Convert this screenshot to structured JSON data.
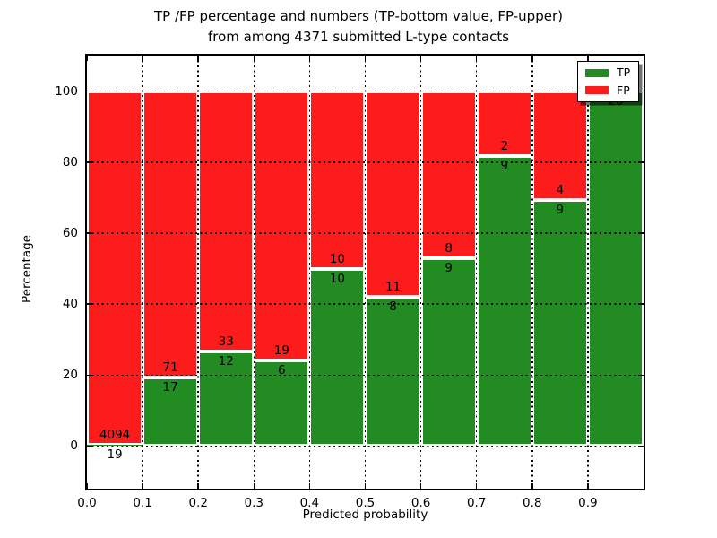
{
  "chart_data": {
    "type": "bar",
    "subtype": "stacked-percentage-histogram",
    "title": "TP /FP percentage and numbers (TP-bottom value, FP-upper)\nfrom among 4371 submitted L-type contacts",
    "xlabel": "Predicted probability",
    "ylabel": "Percentage",
    "total_contacts": 4371,
    "xlim": [
      0.0,
      1.0
    ],
    "ylim": [
      -12,
      110
    ],
    "x_ticks": [
      "0.0",
      "0.1",
      "0.2",
      "0.3",
      "0.4",
      "0.5",
      "0.6",
      "0.7",
      "0.8",
      "0.9"
    ],
    "y_ticks": [
      0,
      20,
      40,
      60,
      80,
      100
    ],
    "grid": true,
    "grid_style": "dotted",
    "legend_position": "upper-right",
    "bar_width": 0.1,
    "bar_edge_color": "#ffffff",
    "legend": [
      {
        "label": "TP",
        "color": "#228b22"
      },
      {
        "label": "FP",
        "color": "#fc1c1c"
      }
    ],
    "bins": [
      {
        "range": [
          0.0,
          0.1
        ],
        "tp": 19,
        "fp": 4094
      },
      {
        "range": [
          0.1,
          0.2
        ],
        "tp": 17,
        "fp": 71
      },
      {
        "range": [
          0.2,
          0.3
        ],
        "tp": 12,
        "fp": 33
      },
      {
        "range": [
          0.3,
          0.4
        ],
        "tp": 6,
        "fp": 19
      },
      {
        "range": [
          0.4,
          0.5
        ],
        "tp": 10,
        "fp": 10
      },
      {
        "range": [
          0.5,
          0.6
        ],
        "tp": 8,
        "fp": 11
      },
      {
        "range": [
          0.6,
          0.7
        ],
        "tp": 9,
        "fp": 8
      },
      {
        "range": [
          0.7,
          0.8
        ],
        "tp": 9,
        "fp": 2
      },
      {
        "range": [
          0.8,
          0.9
        ],
        "tp": 9,
        "fp": 4
      },
      {
        "range": [
          0.9,
          1.0
        ],
        "tp": 20,
        "fp": 0
      }
    ]
  }
}
